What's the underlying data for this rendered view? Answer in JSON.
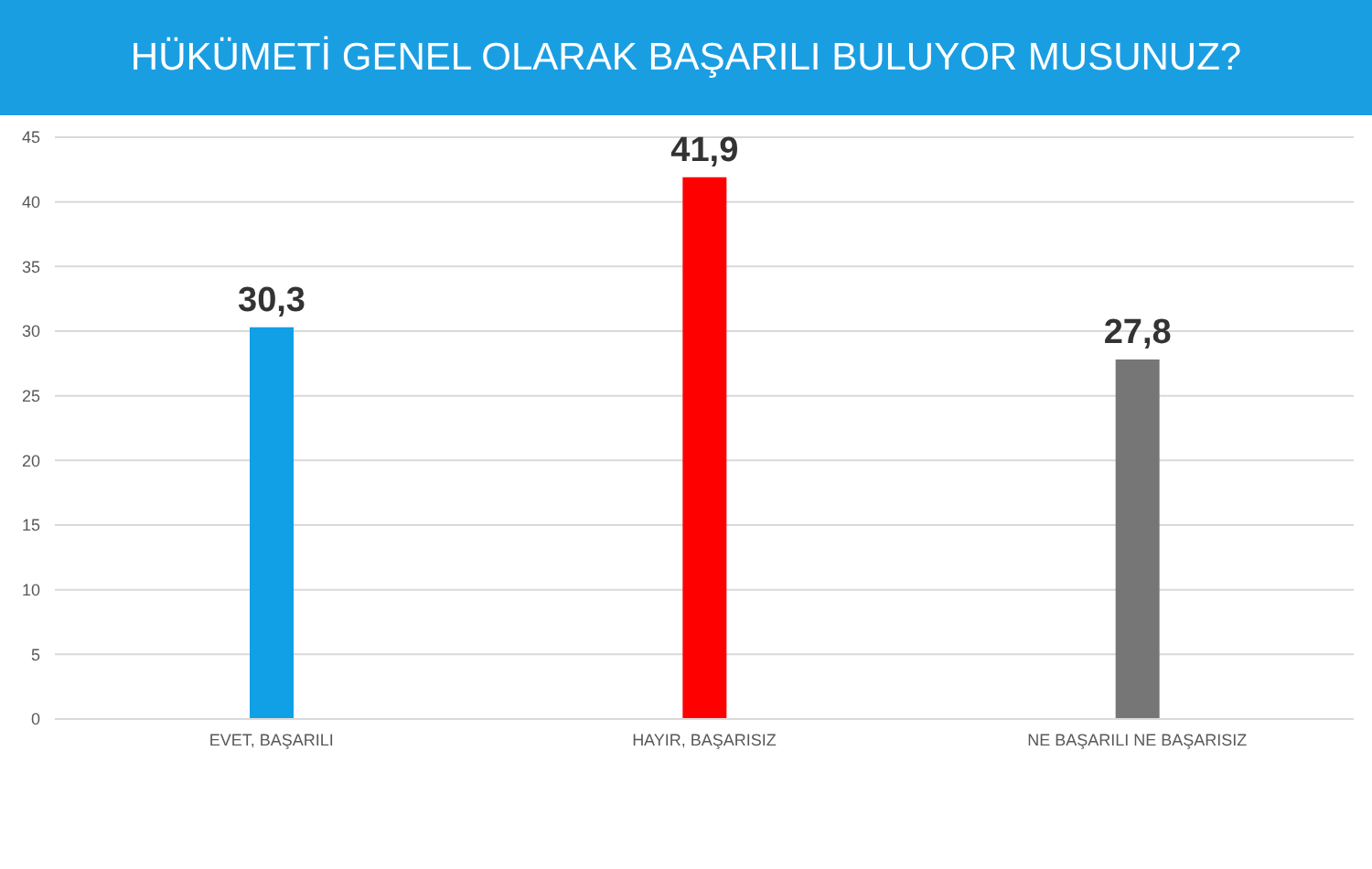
{
  "chart_data": {
    "type": "bar",
    "title": "HÜKÜMETİ GENEL OLARAK BAŞARILI BULUYOR MUSUNUZ?",
    "categories": [
      "EVET, BAŞARILI",
      "HAYIR, BAŞARISIZ",
      "NE BAŞARILI NE BAŞARISIZ"
    ],
    "values": [
      30.3,
      41.9,
      27.8
    ],
    "colors": [
      "#11a0e6",
      "#ff0000",
      "#767676"
    ],
    "value_labels": [
      "30,3",
      "41,9",
      "27,8"
    ],
    "ylim": [
      0,
      45
    ],
    "yticks": [
      0,
      5,
      10,
      15,
      20,
      25,
      30,
      35,
      40,
      45
    ],
    "grid": "y"
  }
}
